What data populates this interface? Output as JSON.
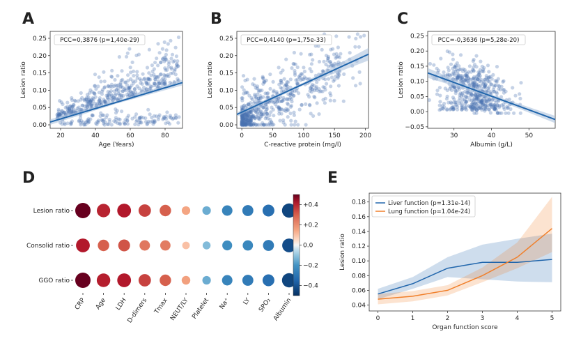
{
  "chart_data": [
    {
      "panel": "A",
      "type": "scatter",
      "annotation": "PCC=0,3876 (p=1,40e-29)",
      "xlabel": "Age (Years)",
      "ylabel": "Lesion ratio",
      "xlim": [
        14,
        90
      ],
      "ylim": [
        -0.01,
        0.27
      ],
      "xticks": [
        20,
        40,
        60,
        80
      ],
      "yticks": [
        0.0,
        0.05,
        0.1,
        0.15,
        0.2,
        0.25
      ],
      "ytick_labels": [
        "0.00",
        "0.05",
        "0.10",
        "0.15",
        "0.20",
        "0.25"
      ],
      "regression": {
        "x": [
          14,
          90
        ],
        "y": [
          0.008,
          0.122
        ]
      },
      "ci_halfwidth": [
        0.008,
        0.004,
        0.008
      ],
      "points_shown": "about 600 patients"
    },
    {
      "panel": "B",
      "type": "scatter",
      "annotation": "PCC=0,4140 (p=1,75e-33)",
      "xlabel": "C-reactive protein (mg/l)",
      "ylabel": "Lesion ratio",
      "xlim": [
        -8,
        205
      ],
      "ylim": [
        -0.01,
        0.27
      ],
      "xticks": [
        0,
        50,
        100,
        150,
        200
      ],
      "yticks": [
        0.0,
        0.05,
        0.1,
        0.15,
        0.2,
        0.25
      ],
      "ytick_labels": [
        "0.00",
        "0.05",
        "0.10",
        "0.15",
        "0.20",
        "0.25"
      ],
      "regression": {
        "x": [
          -8,
          205
        ],
        "y": [
          0.03,
          0.204
        ]
      },
      "ci_halfwidth": [
        0.006,
        0.004,
        0.018
      ],
      "points_shown": "about 600 patients"
    },
    {
      "panel": "C",
      "type": "scatter",
      "annotation": "PCC=-0,3636 (p=5,28e-20)",
      "xlabel": "Albumin (g/L)",
      "ylabel": "Lesion ratio",
      "xlim": [
        23,
        57
      ],
      "ylim": [
        -0.055,
        0.265
      ],
      "xticks": [
        30,
        40,
        50
      ],
      "yticks": [
        -0.05,
        0.0,
        0.05,
        0.1,
        0.15,
        0.2,
        0.25
      ],
      "ytick_labels": [
        "−0.05",
        "0.00",
        "0.05",
        "0.10",
        "0.15",
        "0.20",
        "0.25"
      ],
      "regression": {
        "x": [
          23,
          57
        ],
        "y": [
          0.128,
          -0.026
        ]
      },
      "ci_halfwidth": [
        0.016,
        0.005,
        0.012
      ],
      "points_shown": "about 500 patients"
    },
    {
      "panel": "D",
      "type": "heatmap",
      "rows": [
        "Lesion ratio",
        "Consolid ratio",
        "GGO ratio"
      ],
      "columns": [
        "CRP",
        "Age",
        "LDH",
        "D-dimers",
        "Tmax",
        "NEUT/LY",
        "Platelet",
        "Na⁺",
        "LY",
        "SPO₂",
        "Albumin"
      ],
      "values": [
        [
          0.5,
          0.4,
          0.42,
          0.35,
          0.3,
          0.15,
          -0.15,
          -0.25,
          -0.28,
          -0.32,
          -0.44
        ],
        [
          0.42,
          0.3,
          0.32,
          0.25,
          0.24,
          0.1,
          -0.12,
          -0.22,
          -0.24,
          -0.28,
          -0.42
        ],
        [
          0.5,
          0.41,
          0.42,
          0.35,
          0.3,
          0.16,
          -0.15,
          -0.25,
          -0.28,
          -0.32,
          -0.44
        ]
      ],
      "colorbar": {
        "vmin": -0.5,
        "vmax": 0.5,
        "ticks": [
          0.4,
          0.2,
          0.0,
          -0.2,
          -0.4
        ],
        "tick_labels": [
          "+0.4",
          "+0.2",
          "0.0",
          "−0.2",
          "−0.4"
        ],
        "colormap": "RdBu_r"
      }
    },
    {
      "panel": "E",
      "type": "line",
      "x": [
        0,
        1,
        2,
        3,
        4,
        5
      ],
      "xlabel": "Organ function score",
      "ylabel": "Lesion ratio",
      "xlim": [
        -0.25,
        5.25
      ],
      "ylim": [
        0.032,
        0.192
      ],
      "yticks": [
        0.04,
        0.06,
        0.08,
        0.1,
        0.12,
        0.14,
        0.16,
        0.18
      ],
      "ytick_labels": [
        "0.04",
        "0.06",
        "0.08",
        "0.10",
        "0.12",
        "0.14",
        "0.16",
        "0.18"
      ],
      "legend_placement": "upper-left",
      "series": [
        {
          "name": "Liver function (p=1.31e-14)",
          "color": "#2166ac",
          "values": [
            0.055,
            0.069,
            0.09,
            0.098,
            0.098,
            0.102
          ],
          "lower": [
            0.048,
            0.062,
            0.078,
            0.075,
            0.072,
            0.071
          ],
          "upper": [
            0.062,
            0.078,
            0.105,
            0.122,
            0.13,
            0.137
          ]
        },
        {
          "name": "Lung function (p=1.04e-24)",
          "color": "#f07f2a",
          "values": [
            0.048,
            0.052,
            0.06,
            0.08,
            0.105,
            0.144
          ],
          "lower": [
            0.041,
            0.045,
            0.053,
            0.071,
            0.09,
            0.112
          ],
          "upper": [
            0.055,
            0.059,
            0.067,
            0.091,
            0.125,
            0.187
          ]
        }
      ]
    }
  ],
  "panel_letters": [
    "A",
    "B",
    "C",
    "D",
    "E"
  ],
  "colors": {
    "scatter_point": "#4c72b0",
    "regression": "#2166ac",
    "ci_band": "#a6bddb",
    "lung": "#f07f2a",
    "liver": "#2166ac"
  }
}
